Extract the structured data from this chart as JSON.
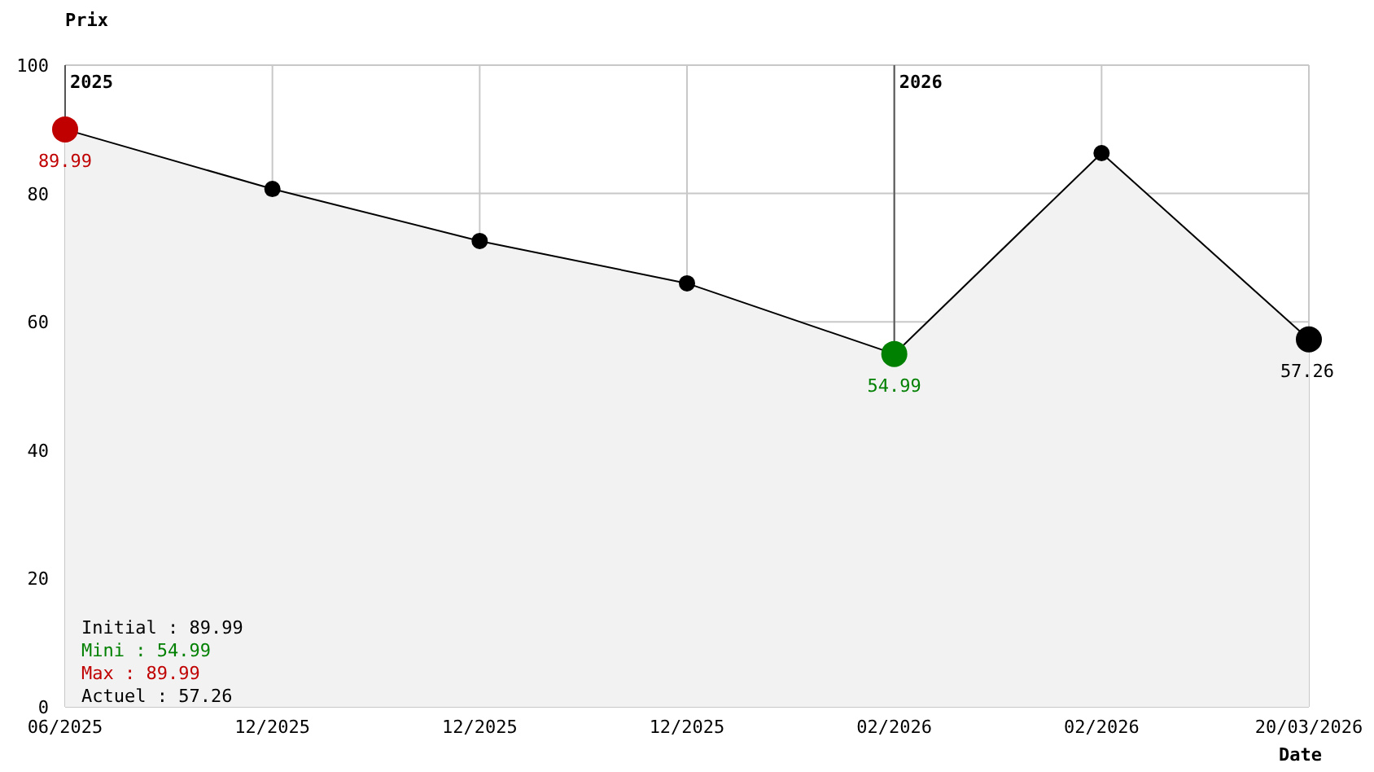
{
  "chart_data": {
    "type": "area",
    "ylabel": "Prix",
    "xlabel": "Date",
    "categories": [
      "06/2025",
      "12/2025",
      "12/2025",
      "12/2025",
      "02/2026",
      "02/2026",
      "20/03/2026"
    ],
    "values": [
      89.99,
      80.7,
      72.6,
      66.0,
      54.99,
      86.3,
      57.26
    ],
    "color": "#f2f2f2",
    "colors": [
      "#c00000",
      "#000000",
      "#000000",
      "#000000",
      "#008000",
      "#000000",
      "#000000"
    ],
    "value_labels": [
      "89.99",
      null,
      null,
      null,
      "54.99",
      null,
      "57.26"
    ],
    "ylim": [
      0,
      100
    ],
    "yticks": [
      0,
      20,
      40,
      60,
      80,
      100
    ],
    "grid": true,
    "marker": "circle",
    "ref_lines": [
      {
        "axis": "x",
        "value": "06/2025",
        "label": "2025",
        "color": "#555555"
      },
      {
        "axis": "x",
        "value": "02/2026",
        "label": "2026",
        "color": "#555555"
      }
    ],
    "annotations": [
      "Initial : 89.99",
      "Mini : 54.99",
      "Max : 89.99",
      "Actuel : 57.26"
    ]
  }
}
